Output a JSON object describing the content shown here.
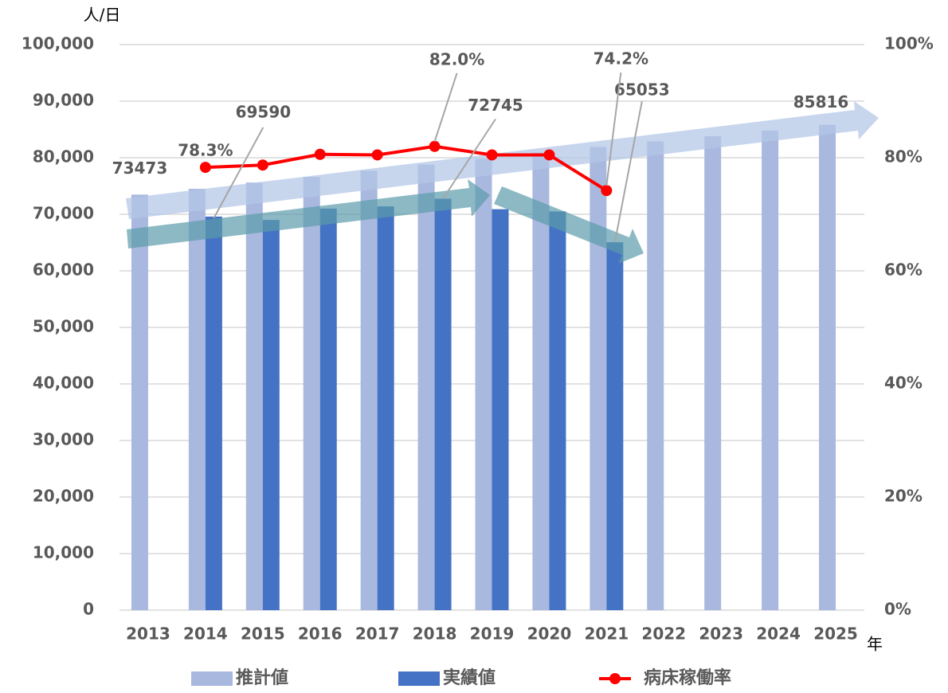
{
  "chart_data": {
    "type": "bar-line",
    "y_axis_label": "人/日",
    "x_axis_label": "年",
    "categories": [
      "2013",
      "2014",
      "2015",
      "2016",
      "2017",
      "2018",
      "2019",
      "2020",
      "2021",
      "2022",
      "2023",
      "2024",
      "2025"
    ],
    "series": [
      {
        "name": "推計値",
        "type": "bar",
        "color": "#a9b8de",
        "values": [
          73473,
          74500,
          75600,
          76600,
          77700,
          78800,
          79800,
          80900,
          81900,
          82900,
          83800,
          84800,
          85816
        ],
        "value_labels": [
          "73473",
          null,
          null,
          null,
          null,
          null,
          null,
          null,
          null,
          null,
          null,
          null,
          "85816"
        ]
      },
      {
        "name": "実績値",
        "type": "bar",
        "color": "#4472c4",
        "values": [
          null,
          69590,
          69000,
          71000,
          71400,
          72745,
          70900,
          70500,
          65053,
          null,
          null,
          null,
          null
        ],
        "value_labels": [
          null,
          "69590",
          null,
          null,
          null,
          "72745",
          null,
          null,
          "65053",
          null,
          null,
          null,
          null
        ]
      },
      {
        "name": "病床稼働率",
        "type": "line",
        "axis": "y2",
        "color": "#ff0000",
        "values": [
          null,
          78.3,
          78.7,
          80.6,
          80.5,
          82.0,
          80.5,
          80.5,
          74.2,
          null,
          null,
          null,
          null
        ],
        "value_labels": [
          null,
          "78.3%",
          null,
          null,
          null,
          "82.0%",
          null,
          null,
          "74.2%",
          null,
          null,
          null,
          null
        ]
      }
    ],
    "ylim": [
      0,
      100000
    ],
    "yticks": [
      0,
      {
        "value": 10000,
        "label": "10,000"
      },
      {
        "value": 20000,
        "label": "20,000"
      },
      {
        "value": 30000,
        "label": "30,000"
      },
      {
        "value": 40000,
        "label": "40,000"
      },
      {
        "value": 50000,
        "label": "50,000"
      },
      {
        "value": 60000,
        "label": "60,000"
      },
      {
        "value": 70000,
        "label": "70,000"
      },
      {
        "value": 80000,
        "label": "80,000"
      },
      {
        "value": 90000,
        "label": "90,000"
      },
      {
        "value": 100000,
        "label": "100,000"
      }
    ],
    "y2lim": [
      0,
      100
    ],
    "y2ticks": [
      {
        "value": 0,
        "label": "0%"
      },
      {
        "value": 20,
        "label": "20%"
      },
      {
        "value": 40,
        "label": "40%"
      },
      {
        "value": 60,
        "label": "60%"
      },
      {
        "value": 80,
        "label": "80%"
      },
      {
        "value": 100,
        "label": "100%"
      }
    ],
    "grid": true,
    "legend": "bottom"
  }
}
